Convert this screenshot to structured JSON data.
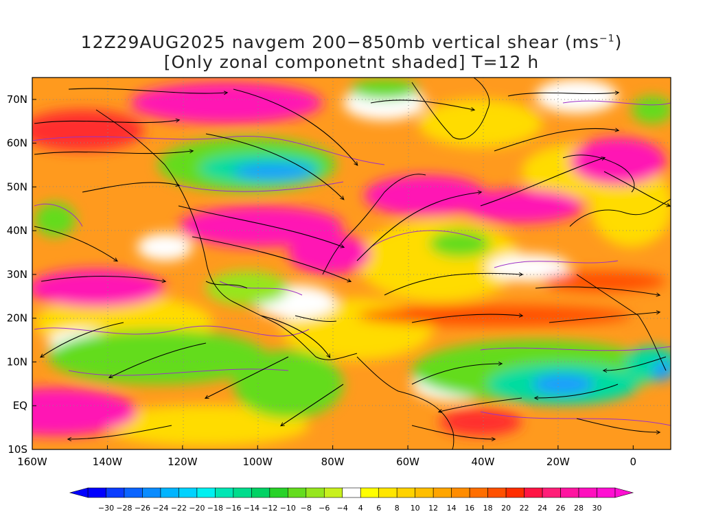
{
  "title": {
    "line1_prefix": "12Z29AUG2025 navgem 200−850mb vertical shear (ms",
    "line1_sup": "−1",
    "line1_suffix": ")",
    "line2": "[Only zonal componetnt shaded] T=12 h"
  },
  "axes": {
    "lon_labels": [
      "160W",
      "140W",
      "120W",
      "100W",
      "80W",
      "60W",
      "40W",
      "20W",
      "0"
    ],
    "lat_labels": [
      "70N",
      "60N",
      "50N",
      "40N",
      "30N",
      "20N",
      "10N",
      "EQ",
      "10S"
    ],
    "lon_range": [
      -160,
      10
    ],
    "lat_range": [
      -10,
      75
    ]
  },
  "colorbar": {
    "labels": [
      "−30",
      "−28",
      "−26",
      "−24",
      "−22",
      "−20",
      "−18",
      "−16",
      "−14",
      "−12",
      "−10",
      "−8",
      "−6",
      "−4",
      "4",
      "6",
      "8",
      "10",
      "12",
      "14",
      "16",
      "18",
      "20",
      "22",
      "24",
      "26",
      "28",
      "30"
    ],
    "colors": [
      "#0000ff",
      "#0a3cff",
      "#0a64ff",
      "#0a8cff",
      "#00b4ff",
      "#00d2ff",
      "#00f0f0",
      "#00e6b4",
      "#00dc8c",
      "#00d264",
      "#28d228",
      "#64dc1e",
      "#96e61e",
      "#c8f01e",
      "#ffffff",
      "#ffff00",
      "#ffe600",
      "#ffd200",
      "#ffbe00",
      "#ffa500",
      "#ff8c00",
      "#ff6e00",
      "#ff5000",
      "#ff2d00",
      "#ff1444",
      "#ff1e78",
      "#ff14a0",
      "#ff0fbe",
      "#ff0fd2"
    ]
  },
  "colors": {
    "pink": "#ff14b4",
    "red": "#ff2d2d",
    "orange": "#ff8c1e",
    "yellow": "#ffdc00",
    "green": "#64dc1e",
    "teal": "#00dca0",
    "blue": "#1e9bff",
    "contour": "#9b30c8"
  }
}
